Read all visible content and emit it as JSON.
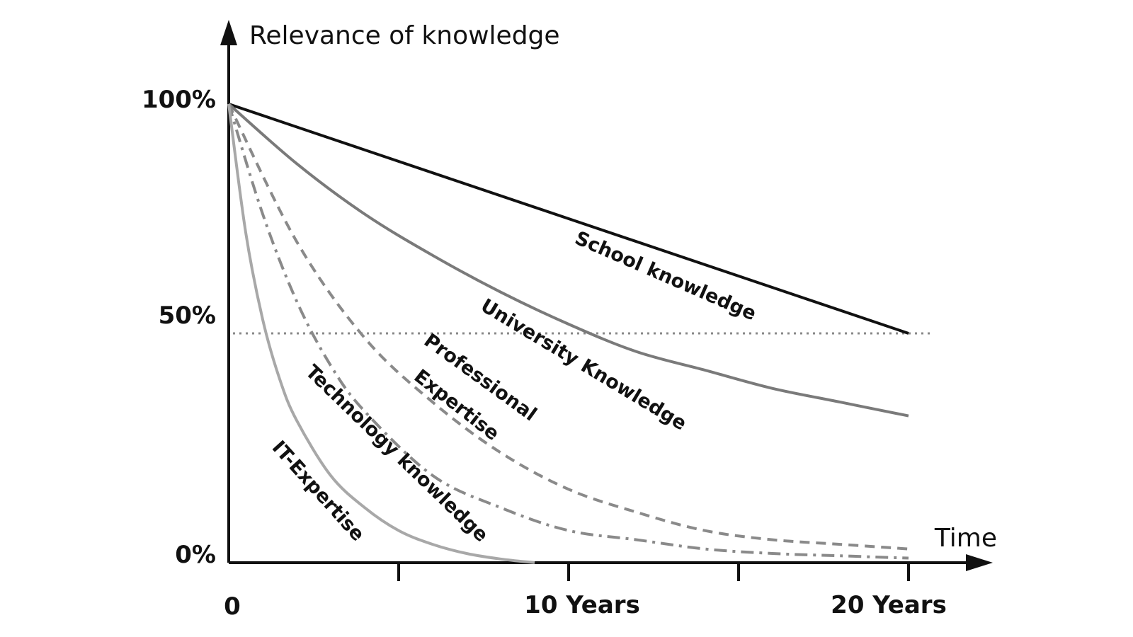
{
  "chart_data": {
    "type": "line",
    "title": "",
    "ylabel": "Relevance of knowledge",
    "xlabel": "Time",
    "xlim": [
      0,
      20
    ],
    "ylim": [
      0,
      100
    ],
    "x_ticks": [
      0,
      5,
      10,
      15,
      20
    ],
    "x_tick_labels": [
      {
        "x": 0,
        "label": "0"
      },
      {
        "x": 10,
        "label": "10 Years"
      },
      {
        "x": 20,
        "label": "20 Years"
      }
    ],
    "y_tick_labels": [
      {
        "y": 100,
        "label": "100%"
      },
      {
        "y": 50,
        "label": "50%"
      },
      {
        "y": 0,
        "label": "0%"
      }
    ],
    "reference_line": {
      "y": 50,
      "style": "dotted",
      "color": "#888888"
    },
    "grid": false,
    "series": [
      {
        "name": "School knowledge",
        "style": "solid",
        "color": "#111111",
        "x": [
          0,
          5,
          10,
          15,
          20
        ],
        "y": [
          100,
          87.5,
          75,
          62.5,
          50
        ]
      },
      {
        "name": "University Knowledge",
        "style": "solid",
        "color": "#7a7a7a",
        "x": [
          0,
          2,
          4,
          6,
          8,
          10,
          12,
          14,
          16,
          18,
          20
        ],
        "y": [
          100,
          87,
          76,
          67,
          59,
          52,
          46,
          42,
          38,
          35,
          32
        ]
      },
      {
        "name": "Professional Expertise",
        "style": "dashed",
        "color": "#8a8a8a",
        "x": [
          0,
          2,
          4,
          6,
          8,
          10,
          12,
          14,
          16,
          18,
          20
        ],
        "y": [
          100,
          70,
          49,
          35,
          24,
          16,
          11,
          7,
          5,
          4,
          3
        ]
      },
      {
        "name": "Technology knowledge",
        "style": "dashdot",
        "color": "#8a8a8a",
        "x": [
          0,
          1,
          2,
          3,
          4,
          6,
          8,
          10,
          12,
          14,
          16,
          18,
          20
        ],
        "y": [
          100,
          76,
          57,
          43,
          33,
          19,
          12,
          7,
          5,
          3,
          2,
          1.5,
          1
        ]
      },
      {
        "name": "IT-Expertise",
        "style": "solid",
        "color": "#a8a8a8",
        "x": [
          0,
          0.5,
          1,
          1.5,
          2,
          3,
          4,
          5,
          6,
          7,
          8,
          9
        ],
        "y": [
          100,
          72,
          53,
          40,
          31,
          19,
          12,
          7,
          4,
          2,
          0.8,
          0
        ]
      }
    ]
  },
  "labels": {
    "school": "School knowledge",
    "university": "University Knowledge",
    "professional_line1": "Professional",
    "professional_line2": "Expertise",
    "technology": "Technology knowledge",
    "it": "IT-Expertise"
  }
}
